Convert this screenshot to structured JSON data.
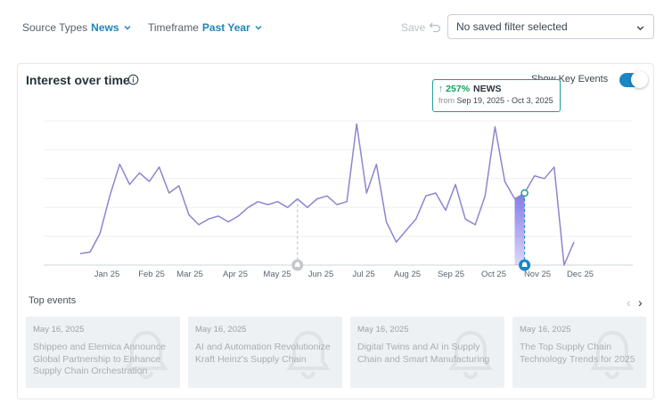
{
  "filters": {
    "source_types": {
      "label": "Source Types",
      "value": "News"
    },
    "timeframe": {
      "label": "Timeframe",
      "value": "Past Year"
    },
    "save_label": "Save",
    "saved_filter": "No saved filter selected"
  },
  "card": {
    "title": "Interest over time",
    "key_events_label": "Show Key Events",
    "key_events_enabled": true
  },
  "tooltip": {
    "arrow": "↑",
    "percent": "257%",
    "type": "NEWS",
    "from_label": "from",
    "range": "Sep 19, 2025 - Oct 3, 2025"
  },
  "chart_data": {
    "type": "line",
    "x_ticks": [
      "Jan 25",
      "Feb 25",
      "Mar 25",
      "Apr 25",
      "May 25",
      "Jun 25",
      "Jul 25",
      "Aug 25",
      "Sep 25",
      "Oct 25",
      "Nov 25",
      "Dec 25"
    ],
    "values": [
      8,
      9,
      22,
      48,
      70,
      56,
      64,
      58,
      68,
      50,
      55,
      35,
      28,
      32,
      34,
      30,
      34,
      40,
      44,
      42,
      44,
      40,
      46,
      40,
      46,
      48,
      42,
      44,
      98,
      50,
      70,
      30,
      16,
      24,
      32,
      48,
      50,
      38,
      56,
      32,
      28,
      48,
      96,
      58,
      46,
      50,
      62,
      60,
      68,
      0,
      16
    ],
    "highlight_index": 45,
    "ylim": [
      0,
      100
    ],
    "grid": true,
    "colors": {
      "line": "#8b86cf",
      "highlight": "#6f62e3",
      "marker": "#1b86c4"
    }
  },
  "top_events": {
    "title": "Top events",
    "items": [
      {
        "date": "May 16, 2025",
        "title": "Shippeo and Elemica Announce Global Partnership to Enhance Supply Chain Orchestration"
      },
      {
        "date": "May 16, 2025",
        "title": "AI and Automation Revolutionize Kraft Heinz's Supply Chain"
      },
      {
        "date": "May 16, 2025",
        "title": "Digital Twins and AI in Supply Chain and Smart Manufacturing"
      },
      {
        "date": "May 16, 2025",
        "title": "The Top Supply Chain Technology Trends for 2025"
      }
    ]
  },
  "icons": [
    "chevron-down-icon",
    "undo-icon",
    "info-icon",
    "bell-icon",
    "chevron-left-icon",
    "chevron-right-icon"
  ]
}
